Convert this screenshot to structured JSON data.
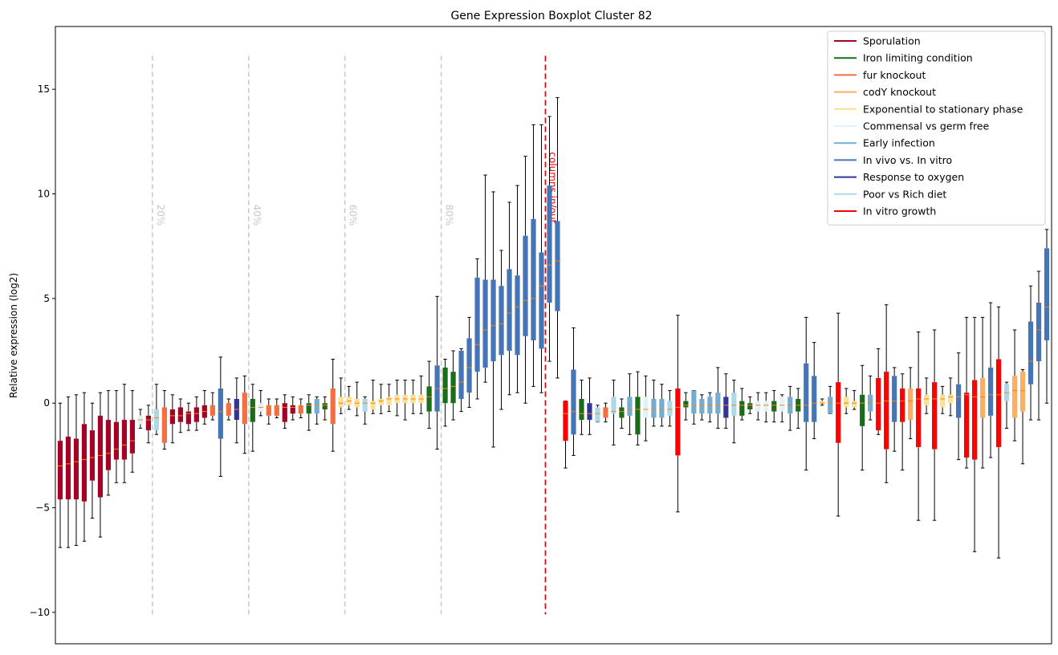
{
  "chart_data": {
    "type": "boxplot",
    "title": "Gene Expression Boxplot Cluster 82",
    "xlabel": "",
    "ylabel": "Relative expression (log2)",
    "ylim": [
      -11.5,
      18
    ],
    "yticks": [
      -10,
      -5,
      0,
      5,
      10,
      15
    ],
    "x_ticks_visible": false,
    "percentile_markers": [
      {
        "label": "20%",
        "index": 11.5
      },
      {
        "label": "40%",
        "index": 23.5
      },
      {
        "label": "60%",
        "index": 35.5
      },
      {
        "label": "80%",
        "index": 47.5
      }
    ],
    "split_marker": {
      "label": "columns in/out",
      "index": 60.5,
      "color": "#ee0000"
    },
    "marker_range": [
      -10.1,
      16.6
    ],
    "legend": {
      "position": "top-right",
      "entries": [
        {
          "label": "Sporulation",
          "color": "#a50026"
        },
        {
          "label": "Iron limiting condition",
          "color": "#1a6b1a"
        },
        {
          "label": "fur knockout",
          "color": "#f46d43"
        },
        {
          "label": "codY knockout",
          "color": "#fdae61"
        },
        {
          "label": "Exponential to stationary phase",
          "color": "#fee090"
        },
        {
          "label": "Commensal vs germ free",
          "color": "#e0f3f8"
        },
        {
          "label": "Early infection",
          "color": "#74add1"
        },
        {
          "label": "In vivo vs. In vitro",
          "color": "#4575b4"
        },
        {
          "label": "Response to oxygen",
          "color": "#313695"
        },
        {
          "label": "Poor vs Rich diet",
          "color": "#abd9e9"
        },
        {
          "label": "In vitro growth",
          "color": "#ff0000"
        }
      ]
    },
    "columns": "[group, whisker_low, q1, median, q3, whisker_high]; group indexes legend.entries",
    "boxes": [
      [
        0,
        -6.9,
        -4.6,
        -3.0,
        -1.8,
        0.0
      ],
      [
        0,
        -6.9,
        -4.6,
        -2.9,
        -1.6,
        0.3
      ],
      [
        0,
        -6.8,
        -4.6,
        -2.8,
        -1.7,
        0.4
      ],
      [
        0,
        -6.6,
        -4.7,
        -2.7,
        -1.0,
        0.5
      ],
      [
        0,
        -5.5,
        -3.7,
        -2.6,
        -1.3,
        0.0
      ],
      [
        0,
        -6.4,
        -4.5,
        -2.5,
        -0.6,
        0.5
      ],
      [
        0,
        -4.4,
        -3.2,
        -2.4,
        -0.8,
        0.6
      ],
      [
        0,
        -3.8,
        -2.7,
        -2.2,
        -0.9,
        0.6
      ],
      [
        0,
        -3.8,
        -2.7,
        -2.0,
        -0.8,
        0.9
      ],
      [
        0,
        -3.3,
        -2.4,
        -1.8,
        -0.8,
        0.6
      ],
      [
        5,
        -1.2,
        -1.0,
        -0.8,
        -0.6,
        -0.3
      ],
      [
        0,
        -1.9,
        -1.3,
        -0.8,
        -0.6,
        -0.1
      ],
      [
        9,
        -1.5,
        -1.3,
        -0.7,
        -0.3,
        0.9
      ],
      [
        2,
        -2.2,
        -1.9,
        -0.7,
        -0.2,
        0.6
      ],
      [
        0,
        -1.9,
        -1.0,
        -0.6,
        -0.3,
        0.4
      ],
      [
        0,
        -1.4,
        -0.9,
        -0.6,
        -0.2,
        0.2
      ],
      [
        0,
        -1.3,
        -1.0,
        -0.5,
        -0.4,
        0.0
      ],
      [
        0,
        -1.3,
        -0.9,
        -0.5,
        -0.2,
        0.3
      ],
      [
        0,
        -1.0,
        -0.7,
        -0.4,
        -0.1,
        0.6
      ],
      [
        2,
        -0.8,
        -0.6,
        -0.3,
        -0.1,
        0.5
      ],
      [
        7,
        -3.5,
        -1.7,
        -0.4,
        0.7,
        2.2
      ],
      [
        2,
        -0.8,
        -0.6,
        -0.3,
        0.0,
        0.2
      ],
      [
        8,
        -1.9,
        -0.8,
        -0.3,
        0.2,
        1.2
      ],
      [
        2,
        -2.4,
        -1.0,
        -0.3,
        0.5,
        1.3
      ],
      [
        1,
        -2.3,
        -0.9,
        -0.2,
        0.2,
        0.9
      ],
      [
        5,
        -0.6,
        -0.4,
        -0.2,
        0.0,
        0.6
      ],
      [
        2,
        -1.0,
        -0.6,
        -0.2,
        -0.1,
        0.2
      ],
      [
        2,
        -0.7,
        -0.6,
        -0.2,
        -0.1,
        0.2
      ],
      [
        0,
        -1.2,
        -0.9,
        -0.2,
        0.0,
        0.4
      ],
      [
        0,
        -0.8,
        -0.5,
        -0.2,
        -0.1,
        0.3
      ],
      [
        2,
        -0.7,
        -0.5,
        -0.2,
        -0.1,
        0.2
      ],
      [
        1,
        -1.3,
        -0.5,
        -0.1,
        0.0,
        0.4
      ],
      [
        6,
        -1.0,
        -0.5,
        -0.1,
        0.2,
        0.3
      ],
      [
        1,
        -0.8,
        -0.3,
        -0.1,
        0.0,
        0.3
      ],
      [
        2,
        -2.3,
        -1.0,
        -0.1,
        0.7,
        2.1
      ],
      [
        4,
        -0.5,
        -0.2,
        0.0,
        0.3,
        1.2
      ],
      [
        4,
        -0.3,
        -0.1,
        0.1,
        0.3,
        0.8
      ],
      [
        4,
        -0.6,
        -0.2,
        0.0,
        0.2,
        1.0
      ],
      [
        9,
        -1.0,
        -0.4,
        0.0,
        0.2,
        0.3
      ],
      [
        4,
        -0.5,
        -0.3,
        0.0,
        0.1,
        1.1
      ],
      [
        4,
        -0.5,
        -0.1,
        0.1,
        0.2,
        0.9
      ],
      [
        4,
        -0.4,
        -0.1,
        0.2,
        0.3,
        0.9
      ],
      [
        4,
        -0.6,
        0.0,
        0.2,
        0.4,
        1.1
      ],
      [
        4,
        -0.8,
        0.0,
        0.2,
        0.4,
        1.1
      ],
      [
        4,
        -0.5,
        0.0,
        0.2,
        0.4,
        1.1
      ],
      [
        4,
        -0.5,
        0.0,
        0.2,
        0.4,
        1.3
      ],
      [
        1,
        -1.2,
        -0.4,
        0.3,
        0.8,
        2.0
      ],
      [
        7,
        -2.2,
        -0.4,
        0.7,
        1.8,
        5.1
      ],
      [
        1,
        -1.1,
        0.0,
        0.7,
        1.7,
        2.1
      ],
      [
        1,
        -0.8,
        0.0,
        0.8,
        1.5,
        2.5
      ],
      [
        7,
        -0.4,
        0.2,
        1.0,
        2.5,
        2.6
      ],
      [
        7,
        -0.2,
        0.5,
        1.7,
        3.1,
        4.1
      ],
      [
        7,
        0.2,
        1.5,
        2.8,
        6.0,
        6.9
      ],
      [
        7,
        1.0,
        1.7,
        3.5,
        5.9,
        10.9
      ],
      [
        7,
        -2.1,
        2.0,
        3.7,
        5.9,
        10.1
      ],
      [
        7,
        -0.3,
        2.3,
        3.8,
        5.6,
        7.3
      ],
      [
        7,
        0.4,
        2.5,
        4.3,
        6.4,
        9.6
      ],
      [
        7,
        0.5,
        2.3,
        4.6,
        6.1,
        10.4
      ],
      [
        7,
        0.0,
        3.2,
        4.9,
        8.0,
        11.8
      ],
      [
        7,
        0.8,
        3.0,
        5.0,
        8.8,
        13.3
      ],
      [
        7,
        0.5,
        2.6,
        5.6,
        7.2,
        13.3
      ],
      [
        7,
        2.0,
        4.8,
        6.6,
        10.4,
        13.7
      ],
      [
        7,
        1.2,
        4.4,
        6.8,
        8.7,
        14.6
      ],
      [
        10,
        -3.1,
        -1.8,
        -0.5,
        0.1,
        0.1
      ],
      [
        7,
        -2.5,
        -1.5,
        -0.4,
        1.6,
        3.6
      ],
      [
        1,
        -1.5,
        -0.8,
        -0.5,
        0.2,
        1.1
      ],
      [
        8,
        -1.5,
        -0.8,
        -0.5,
        0.0,
        1.2
      ],
      [
        9,
        -0.9,
        -0.9,
        -0.5,
        -0.2,
        -0.1
      ],
      [
        2,
        -0.9,
        -0.7,
        -0.5,
        -0.2,
        0.0
      ],
      [
        9,
        -2.0,
        -0.5,
        -0.4,
        0.3,
        1.1
      ],
      [
        1,
        -1.2,
        -0.7,
        -0.4,
        -0.2,
        0.2
      ],
      [
        6,
        -1.5,
        -0.6,
        -0.3,
        0.3,
        1.4
      ],
      [
        1,
        -2.0,
        -1.5,
        -0.3,
        0.3,
        1.5
      ],
      [
        5,
        -1.8,
        -0.7,
        -0.3,
        0.3,
        1.3
      ],
      [
        6,
        -1.1,
        -0.7,
        -0.3,
        0.2,
        1.1
      ],
      [
        6,
        -1.1,
        -0.7,
        -0.3,
        0.2,
        0.9
      ],
      [
        9,
        -1.1,
        -0.6,
        -0.3,
        0.1,
        0.6
      ],
      [
        10,
        -5.2,
        -2.5,
        -0.2,
        0.7,
        4.2
      ],
      [
        1,
        -0.8,
        -0.2,
        -0.1,
        0.1,
        0.5
      ],
      [
        6,
        -1.0,
        -0.5,
        -0.1,
        0.6,
        0.6
      ],
      [
        6,
        -0.8,
        -0.5,
        -0.1,
        0.2,
        0.4
      ],
      [
        6,
        -0.9,
        -0.5,
        -0.1,
        0.3,
        0.5
      ],
      [
        6,
        -1.2,
        -0.5,
        -0.1,
        0.5,
        1.7
      ],
      [
        8,
        -1.2,
        -0.7,
        -0.1,
        0.3,
        1.4
      ],
      [
        9,
        -1.9,
        -0.6,
        -0.1,
        0.5,
        1.1
      ],
      [
        1,
        -0.8,
        -0.6,
        -0.1,
        0.1,
        0.7
      ],
      [
        1,
        -0.5,
        -0.3,
        -0.1,
        0.0,
        0.3
      ],
      [
        5,
        -0.8,
        -0.4,
        -0.1,
        0.1,
        0.5
      ],
      [
        5,
        -0.9,
        -0.4,
        -0.1,
        0.1,
        0.5
      ],
      [
        1,
        -0.9,
        -0.4,
        -0.1,
        0.1,
        0.6
      ],
      [
        5,
        -0.9,
        -0.4,
        -0.1,
        0.3,
        0.4
      ],
      [
        6,
        -1.3,
        -0.5,
        -0.1,
        0.3,
        0.8
      ],
      [
        1,
        -1.2,
        -0.4,
        -0.1,
        0.2,
        0.7
      ],
      [
        7,
        -3.2,
        -0.9,
        -0.1,
        1.9,
        4.1
      ],
      [
        7,
        -1.7,
        -0.9,
        0.0,
        1.3,
        2.9
      ],
      [
        4,
        -0.1,
        0.0,
        0.0,
        0.1,
        0.2
      ],
      [
        6,
        -0.5,
        -0.5,
        0.0,
        0.3,
        0.8
      ],
      [
        10,
        -5.4,
        -1.9,
        0.0,
        1.0,
        4.3
      ],
      [
        4,
        -0.5,
        -0.2,
        0.0,
        0.3,
        0.7
      ],
      [
        4,
        -0.3,
        -0.2,
        0.0,
        0.1,
        0.6
      ],
      [
        1,
        -3.2,
        -1.1,
        0.0,
        0.4,
        1.8
      ],
      [
        6,
        -0.8,
        -0.4,
        0.0,
        0.4,
        1.3
      ],
      [
        10,
        -1.5,
        -1.3,
        0.0,
        1.2,
        2.6
      ],
      [
        10,
        -3.8,
        -2.2,
        0.1,
        1.5,
        4.7
      ],
      [
        7,
        -2.3,
        -0.9,
        0.1,
        1.3,
        1.7
      ],
      [
        10,
        -3.2,
        -0.9,
        0.1,
        0.7,
        1.4
      ],
      [
        3,
        -1.7,
        -0.8,
        0.1,
        0.7,
        1.7
      ],
      [
        10,
        -5.6,
        -2.1,
        0.2,
        0.7,
        3.4
      ],
      [
        4,
        -0.5,
        -0.1,
        0.2,
        0.4,
        1.2
      ],
      [
        10,
        -5.6,
        -2.2,
        0.2,
        1.0,
        3.5
      ],
      [
        4,
        -0.5,
        -0.2,
        0.2,
        0.4,
        0.8
      ],
      [
        4,
        -0.6,
        0.0,
        0.3,
        0.4,
        1.2
      ],
      [
        7,
        -2.7,
        -0.7,
        0.3,
        0.9,
        2.4
      ],
      [
        10,
        -3.1,
        -2.6,
        0.4,
        0.5,
        4.1
      ],
      [
        10,
        -7.1,
        -2.7,
        0.3,
        1.1,
        4.1
      ],
      [
        3,
        -3.1,
        -0.7,
        0.3,
        1.2,
        4.1
      ],
      [
        7,
        -2.6,
        -0.6,
        0.4,
        1.7,
        4.8
      ],
      [
        10,
        -7.4,
        -2.1,
        0.4,
        2.1,
        4.6
      ],
      [
        9,
        -1.2,
        0.1,
        0.5,
        0.9,
        1.0
      ],
      [
        3,
        -1.8,
        -0.7,
        0.6,
        1.3,
        3.5
      ],
      [
        3,
        -2.9,
        -0.4,
        0.6,
        1.5,
        1.6
      ],
      [
        7,
        -0.8,
        0.9,
        2.0,
        3.9,
        5.6
      ],
      [
        7,
        -0.8,
        2.0,
        3.5,
        4.8,
        6.3
      ],
      [
        7,
        0.0,
        3.0,
        4.6,
        7.4,
        8.3
      ]
    ]
  }
}
